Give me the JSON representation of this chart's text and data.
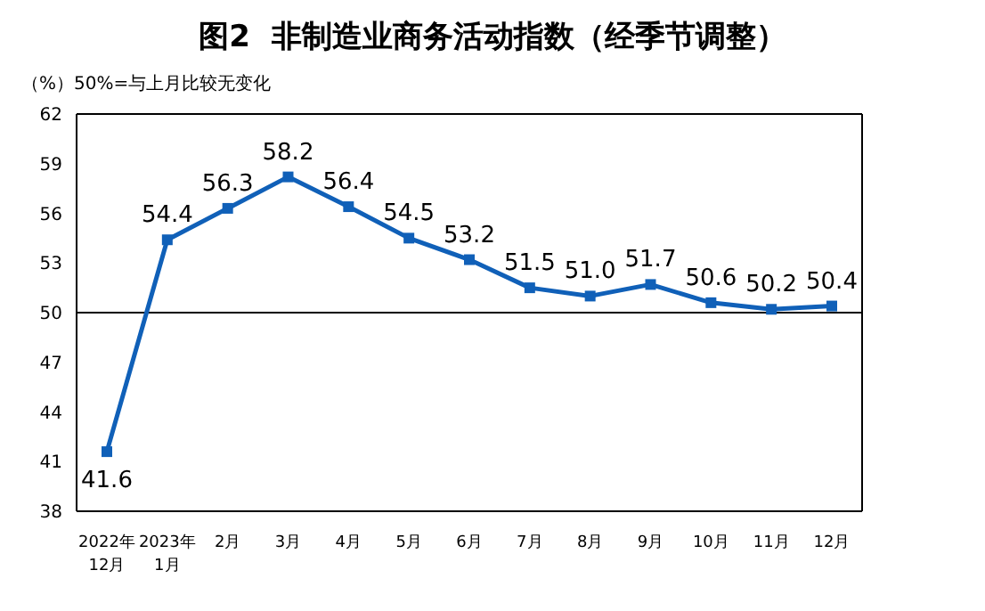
{
  "chart_data": {
    "type": "line",
    "title": "图2  非制造业商务活动指数（经季节调整）",
    "ylabel": "（%）50%=与上月比较无变化",
    "categories": [
      "2022年\n12月",
      "2023年\n1月",
      "2月",
      "3月",
      "4月",
      "5月",
      "6月",
      "7月",
      "8月",
      "9月",
      "10月",
      "11月",
      "12月"
    ],
    "series": [
      {
        "color": "#1060b8",
        "values": [
          41.6,
          54.4,
          56.3,
          58.2,
          56.4,
          54.5,
          53.2,
          51.5,
          51.0,
          51.7,
          50.6,
          50.2,
          50.4
        ]
      }
    ],
    "ylim": [
      38,
      62
    ],
    "yticks": [
      38,
      41,
      44,
      47,
      50,
      53,
      56,
      59,
      62
    ],
    "ref_lines": [
      {
        "axis": "y",
        "value": 50,
        "color": "#000000"
      }
    ],
    "value_labels": [
      "41.6",
      "54.4",
      "56.3",
      "58.2",
      "56.4",
      "54.5",
      "53.2",
      "51.5",
      "51.0",
      "51.7",
      "50.6",
      "50.2",
      "50.4"
    ],
    "marker": "square",
    "line_style": "solid",
    "grid": false,
    "legend": false
  }
}
